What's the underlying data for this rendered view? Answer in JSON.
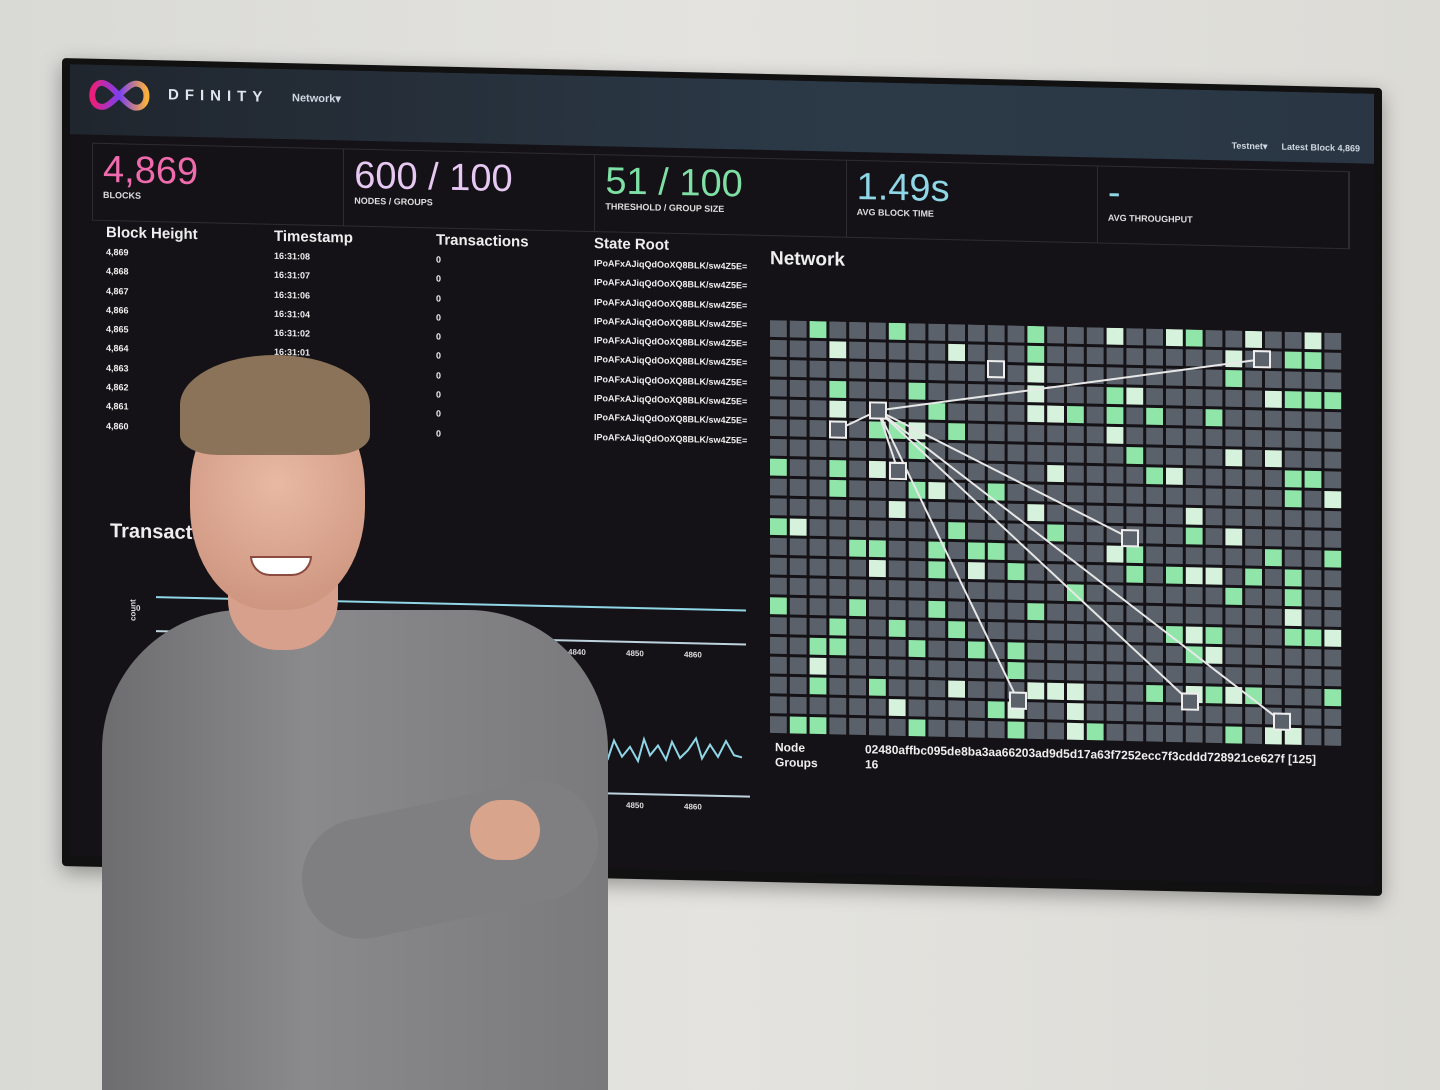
{
  "brand": {
    "name": "DFINITY",
    "network_menu": "Network▾",
    "testnet_menu": "Testnet▾",
    "latest_block": "Latest Block 4,869"
  },
  "stats": [
    {
      "value": "4,869",
      "label": "BLOCKS",
      "color": "#f06aae"
    },
    {
      "value": "600 / 100",
      "label": "NODES / GROUPS",
      "color": "#e6c8f2"
    },
    {
      "value": "51 / 100",
      "label": "THRESHOLD / GROUP SIZE",
      "color": "#7ee0a4"
    },
    {
      "value": "1.49s",
      "label": "AVG BLOCK TIME",
      "color": "#8fd6e6"
    },
    {
      "value": "-",
      "label": "AVG THROUGHPUT",
      "color": "#8fd6e6"
    }
  ],
  "blocks": {
    "headers": [
      "Block Height",
      "Timestamp",
      "Transactions",
      "State Root"
    ],
    "rows": [
      [
        "4,869",
        "16:31:08",
        "0",
        "IPoAFxAJiqQdOoXQ8BLK/sw4Z5E="
      ],
      [
        "4,868",
        "16:31:07",
        "0",
        "IPoAFxAJiqQdOoXQ8BLK/sw4Z5E="
      ],
      [
        "4,867",
        "16:31:06",
        "0",
        "IPoAFxAJiqQdOoXQ8BLK/sw4Z5E="
      ],
      [
        "4,866",
        "16:31:04",
        "0",
        "IPoAFxAJiqQdOoXQ8BLK/sw4Z5E="
      ],
      [
        "4,865",
        "16:31:02",
        "0",
        "IPoAFxAJiqQdOoXQ8BLK/sw4Z5E="
      ],
      [
        "4,864",
        "16:31:01",
        "0",
        "IPoAFxAJiqQdOoXQ8BLK/sw4Z5E="
      ],
      [
        "4,863",
        "",
        "0",
        "IPoAFxAJiqQdOoXQ8BLK/sw4Z5E="
      ],
      [
        "4,862",
        "",
        "0",
        "IPoAFxAJiqQdOoXQ8BLK/sw4Z5E="
      ],
      [
        "4,861",
        "",
        "0",
        "IPoAFxAJiqQdOoXQ8BLK/sw4Z5E="
      ],
      [
        "4,860",
        "",
        "0",
        "IPoAFxAJiqQdOoXQ8BLK/sw4Z5E="
      ]
    ]
  },
  "transactions_chart": {
    "title": "Transacti",
    "ylabel": "count",
    "ytick": "0",
    "xticks": [
      "4770",
      "4830",
      "4840",
      "4850",
      "4860"
    ]
  },
  "block_time_chart": {
    "xticks": [
      "4850",
      "4860"
    ]
  },
  "network": {
    "title": "Network",
    "node_label": "Node",
    "node_value": "02480affbc095de8ba3aa66203ad9d5d17a63f7252ecc7f3cddd728921ce627f [125]",
    "groups_label": "Groups",
    "groups_value": "16"
  }
}
